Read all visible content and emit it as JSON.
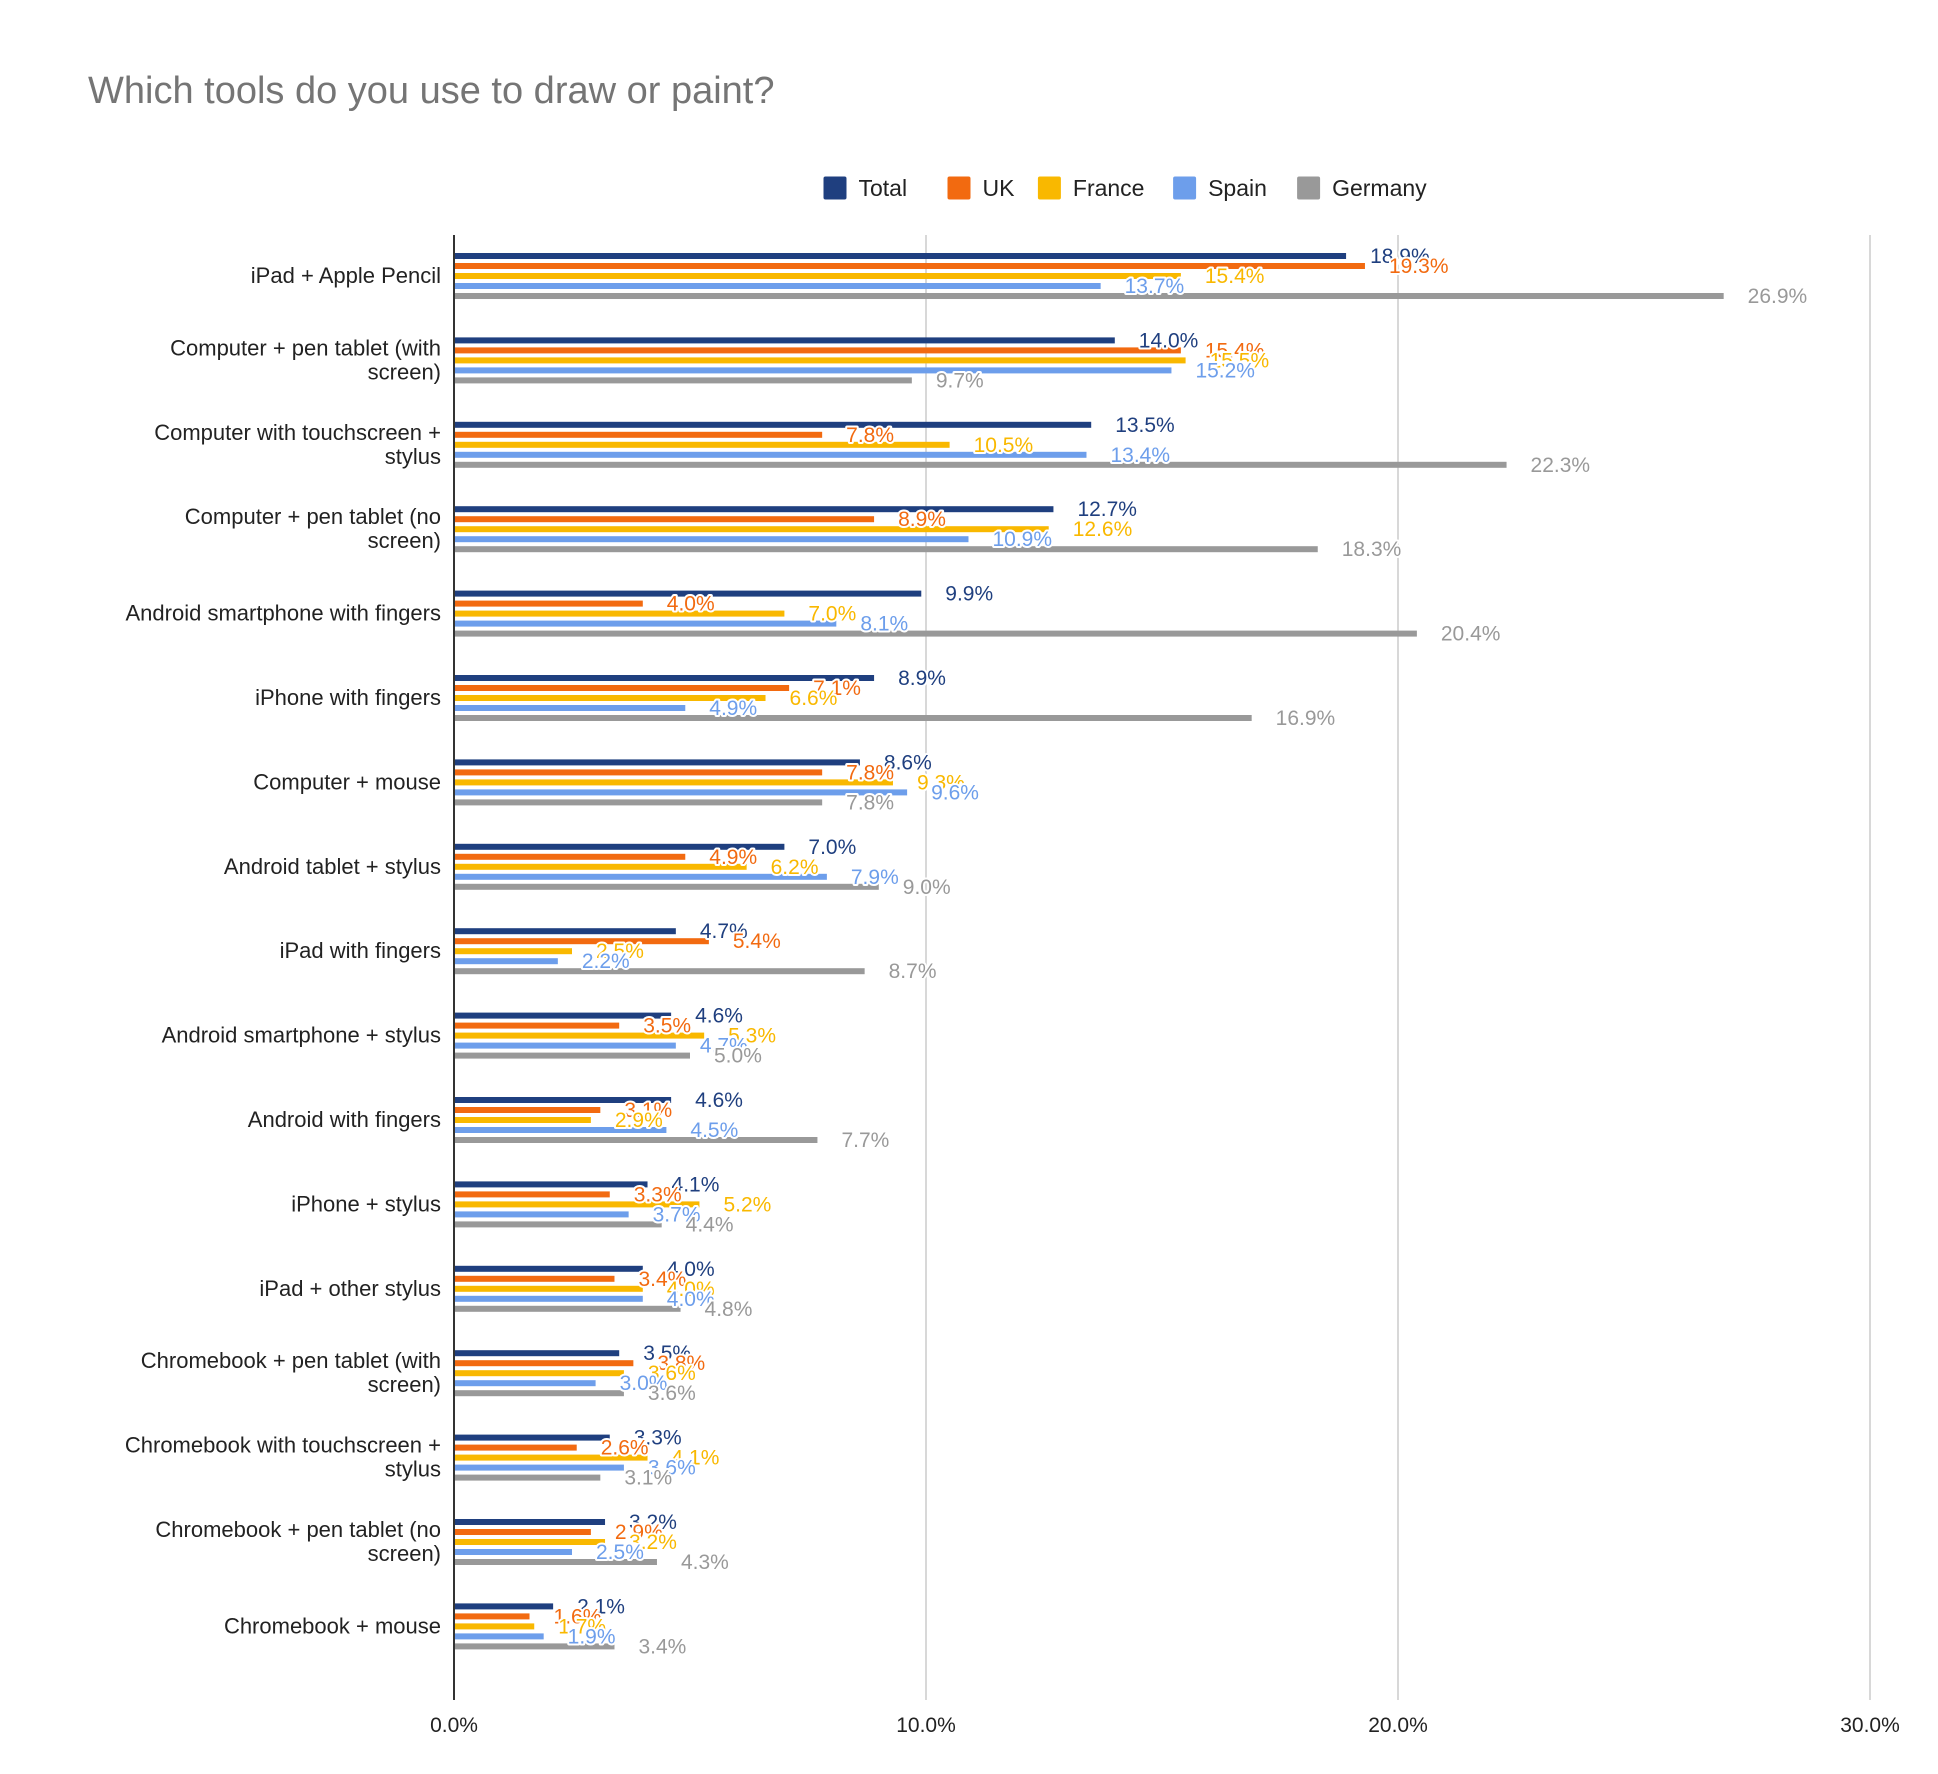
{
  "chart_data": {
    "type": "bar",
    "orientation": "horizontal",
    "title": "Which tools do you use to draw or paint?",
    "xlabel": "",
    "ylabel": "",
    "xlim": [
      0,
      30
    ],
    "x_ticks": [
      "0.0%",
      "10.0%",
      "20.0%",
      "30.0%"
    ],
    "grid": true,
    "legend_position": "top",
    "categories": [
      "iPad + Apple Pencil",
      "Computer + pen tablet (with screen)",
      "Computer with touchscreen + stylus",
      "Computer + pen tablet (no screen)",
      "Android smartphone with fingers",
      "iPhone with fingers",
      "Computer + mouse",
      "Android tablet + stylus",
      "iPad with fingers",
      "Android smartphone + stylus",
      "Android with fingers",
      "iPhone + stylus",
      "iPad + other stylus",
      "Chromebook + pen tablet (with screen)",
      "Chromebook with touchscreen + stylus",
      "Chromebook + pen tablet (no screen)",
      "Chromebook + mouse"
    ],
    "series": [
      {
        "name": "Total",
        "color": "#1f3f7f",
        "values": [
          18.9,
          14.0,
          13.5,
          12.7,
          9.9,
          8.9,
          8.6,
          7.0,
          4.7,
          4.6,
          4.6,
          4.1,
          4.0,
          3.5,
          3.3,
          3.2,
          2.1
        ]
      },
      {
        "name": "UK",
        "color": "#f26a10",
        "values": [
          19.3,
          15.4,
          7.8,
          8.9,
          4.0,
          7.1,
          7.8,
          4.9,
          5.4,
          3.5,
          3.1,
          3.3,
          3.4,
          3.8,
          2.6,
          2.9,
          1.6
        ]
      },
      {
        "name": "France",
        "color": "#f9b800",
        "values": [
          15.4,
          15.5,
          10.5,
          12.6,
          7.0,
          6.6,
          9.3,
          6.2,
          2.5,
          5.3,
          2.9,
          5.2,
          4.0,
          3.6,
          4.1,
          3.2,
          1.7
        ]
      },
      {
        "name": "Spain",
        "color": "#6d9eeb",
        "values": [
          13.7,
          15.2,
          13.4,
          10.9,
          8.1,
          4.9,
          9.6,
          7.9,
          2.2,
          4.7,
          4.5,
          3.7,
          4.0,
          3.0,
          3.6,
          2.5,
          1.9
        ]
      },
      {
        "name": "Germany",
        "color": "#999999",
        "values": [
          26.9,
          9.7,
          22.3,
          18.3,
          20.4,
          16.9,
          7.8,
          9.0,
          8.7,
          5.0,
          7.7,
          4.4,
          4.8,
          3.6,
          3.1,
          4.3,
          3.4
        ]
      }
    ],
    "value_labels": [
      [
        "18.9%",
        "14.0%",
        "13.5%",
        "12.7%",
        "9.9%",
        "8.9%",
        "8.6%",
        "7.0%",
        "4.7%",
        "4.6%",
        "4.6%",
        "4.1%",
        "4.0%",
        "3.5%",
        "3.3%",
        "3.2%",
        "2.1%"
      ],
      [
        "19.3%",
        "15.4%",
        "7.8%",
        "8.9%",
        "4.0%",
        "7.1%",
        "7.8%",
        "4.9%",
        "5.4%",
        "3.5%",
        "3.1%",
        "3.3%",
        "3.4%",
        "3.8%",
        "2.6%",
        "2.9%",
        "1.6%"
      ],
      [
        "15.4%",
        "15.5%",
        "10.5%",
        "12.6%",
        "7.0%",
        "6.6%",
        "9.3%",
        "6.2%",
        "2.5%",
        "5.3%",
        "2.9%",
        "5.2%",
        "4.0%",
        "3.6%",
        "4.1%",
        "3.2%",
        "1.7%"
      ],
      [
        "13.7%",
        "15.2%",
        "13.4%",
        "10.9%",
        "8.1%",
        "4.9%",
        "9.6%",
        "7.9%",
        "2.2%",
        "4.7%",
        "4.5%",
        "3.7%",
        "4.0%",
        "3.0%",
        "3.6%",
        "2.5%",
        "1.9%"
      ],
      [
        "26.9%",
        "9.7%",
        "22.3%",
        "18.3%",
        "20.4%",
        "16.9%",
        "7.8%",
        "9.0%",
        "8.7%",
        "5.0%",
        "7.7%",
        "4.4%",
        "4.8%",
        "3.6%",
        "3.1%",
        "4.3%",
        "3.4%"
      ]
    ]
  }
}
